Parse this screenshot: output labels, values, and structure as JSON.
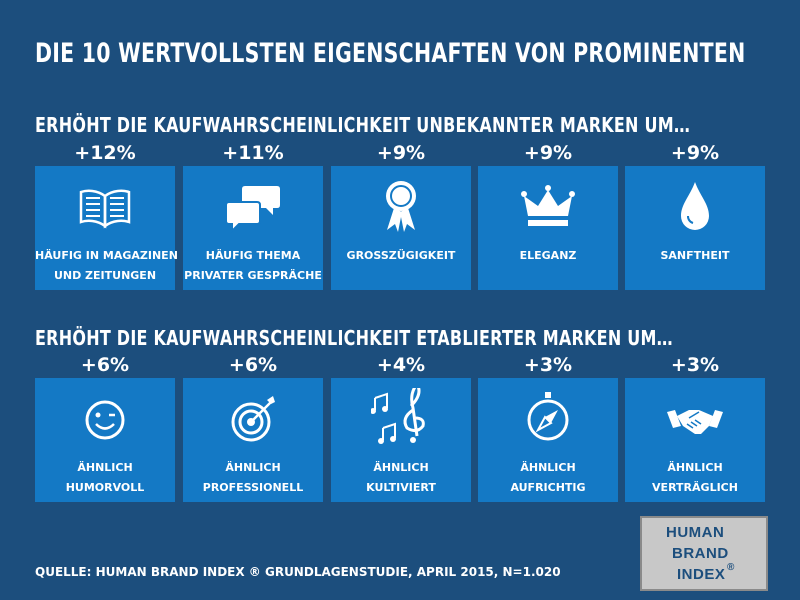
{
  "title": "Die 10 wertvollsten Eigenschaften von Prominenten",
  "section1": {
    "title": "Erhöht die Kaufwahrscheinlichkeit  unbekannter Marken um…",
    "cards": [
      {
        "pct": "+12%",
        "icon": "open-book-icon",
        "line1": "Häufig in Magazinen",
        "line2": "und Zeitungen"
      },
      {
        "pct": "+11%",
        "icon": "speech-bubbles-icon",
        "line1": "Häufig Thema",
        "line2": "privater Gespräche"
      },
      {
        "pct": "+9%",
        "icon": "award-rosette-icon",
        "line1": "Grosszügigkeit",
        "line2": ""
      },
      {
        "pct": "+9%",
        "icon": "crown-icon",
        "line1": "Eleganz",
        "line2": ""
      },
      {
        "pct": "+9%",
        "icon": "water-drop-icon",
        "line1": "Sanftheit",
        "line2": ""
      }
    ]
  },
  "section2": {
    "title": "Erhöht die Kaufwahrscheinlichkeit  etablierter Marken um…",
    "cards": [
      {
        "pct": "+6%",
        "icon": "smiley-wink-icon",
        "line1": "Ähnlich",
        "line2": "humorvoll"
      },
      {
        "pct": "+6%",
        "icon": "target-arrow-icon",
        "line1": "Ähnlich",
        "line2": "professionell"
      },
      {
        "pct": "+4%",
        "icon": "music-notes-icon",
        "line1": "Ähnlich",
        "line2": "kultiviert"
      },
      {
        "pct": "+3%",
        "icon": "compass-icon",
        "line1": "Ähnlich",
        "line2": "aufrichtig"
      },
      {
        "pct": "+3%",
        "icon": "handshake-icon",
        "line1": "Ähnlich",
        "line2": "verträglich"
      }
    ]
  },
  "source": "Quelle: Human Brand Index ® Grundlagenstudie, April 2015, N=1.020",
  "logo": {
    "line1": "HUMAN",
    "line2": "BRAND",
    "line3": "INDEX",
    "mark": "®"
  },
  "colors": {
    "background": "#1c4e7d",
    "card": "#1479c5",
    "text": "#ffffff",
    "logo_bg": "#c8c8c8",
    "logo_text": "#1c4e7d"
  }
}
